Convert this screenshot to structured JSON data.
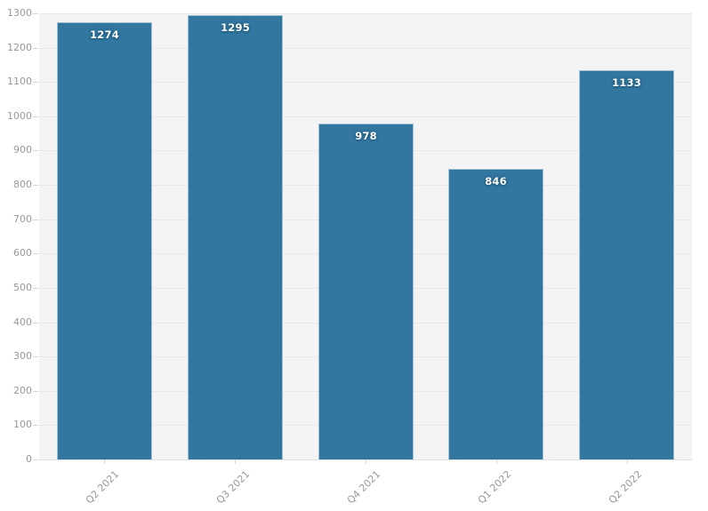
{
  "chart_data": {
    "type": "bar",
    "categories": [
      "Q2 2021",
      "Q3 2021",
      "Q4 2021",
      "Q1 2022",
      "Q2 2022"
    ],
    "values": [
      1274,
      1295,
      978,
      846,
      1133
    ],
    "value_labels": [
      "1274",
      "1295",
      "978",
      "846",
      "1133"
    ],
    "title": "",
    "xlabel": "",
    "ylabel": "",
    "ylim": [
      0,
      1300
    ],
    "ytick_step": 100,
    "ytick_labels": [
      "0",
      "100",
      "200",
      "300",
      "400",
      "500",
      "600",
      "700",
      "800",
      "900",
      "1000",
      "1100",
      "1200",
      "1300"
    ],
    "grid": true,
    "legend": false,
    "colors": {
      "bar_fill": "#3177A0",
      "bar_border": "rgba(255,255,255,0.55)",
      "plot_background": "#f4f4f4",
      "outer_background": "#ffffff",
      "gridline": "#e9e9e9",
      "axis_label": "#999999",
      "tick": "#d6d6d6",
      "value_label": "#ffffff"
    }
  }
}
